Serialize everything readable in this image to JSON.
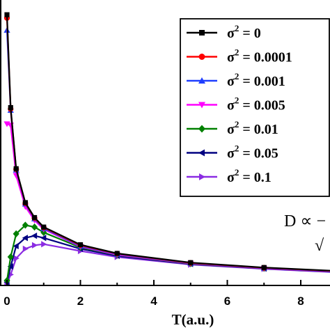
{
  "chart_data": {
    "type": "line",
    "xlabel": "T(a.u.)",
    "ylabel": "",
    "xlim": [
      -0.2,
      9.05
    ],
    "ylim": [
      0,
      1.05
    ],
    "x_ticks": [
      "0",
      "2",
      "4",
      "6",
      "8"
    ],
    "grid": false,
    "legend_position": "top-right",
    "annotation": "D ∝ −",
    "annotation_second_line": "√",
    "x": [
      0.0001,
      0.1,
      0.25,
      0.5,
      0.75,
      1,
      2,
      3,
      5,
      7,
      9.05
    ],
    "series": [
      {
        "name": "σ² = 0",
        "sup": "2",
        "rest": " = 0",
        "color": "#000000",
        "marker": "square",
        "values": [
          0.997,
          0.655,
          0.43,
          0.305,
          0.25,
          0.215,
          0.15,
          0.118,
          0.084,
          0.066,
          0.053
        ]
      },
      {
        "name": "σ² = 0.0001",
        "sup": "2",
        "rest": " = 0.0001",
        "color": "#ff0000",
        "marker": "circle",
        "values": [
          0.985,
          0.65,
          0.428,
          0.303,
          0.248,
          0.213,
          0.148,
          0.117,
          0.083,
          0.065,
          0.052
        ]
      },
      {
        "name": "σ² = 0.001",
        "sup": "2",
        "rest": " = 0.001",
        "color": "#1f3fff",
        "marker": "triangle-up",
        "values": [
          0.94,
          0.645,
          0.425,
          0.3,
          0.245,
          0.21,
          0.145,
          0.115,
          0.082,
          0.064,
          0.051
        ]
      },
      {
        "name": "σ² = 0.005",
        "sup": "2",
        "rest": " = 0.005",
        "color": "#ff00ff",
        "marker": "triangle-down",
        "values": [
          0.595,
          0.59,
          0.405,
          0.29,
          0.24,
          0.207,
          0.143,
          0.113,
          0.081,
          0.063,
          0.05
        ]
      },
      {
        "name": "σ² = 0.01",
        "sup": "2",
        "rest": " = 0.01",
        "color": "#008000",
        "marker": "diamond",
        "values": [
          0.018,
          0.105,
          0.19,
          0.222,
          0.215,
          0.195,
          0.14,
          0.112,
          0.08,
          0.063,
          0.05
        ]
      },
      {
        "name": "σ² = 0.05",
        "sup": "2",
        "rest": " = 0.05",
        "color": "#000080",
        "marker": "triangle-left",
        "values": [
          0.012,
          0.07,
          0.145,
          0.175,
          0.183,
          0.175,
          0.135,
          0.109,
          0.079,
          0.062,
          0.049
        ]
      },
      {
        "name": "σ² = 0.1",
        "sup": "2",
        "rest": " = 0.1",
        "color": "#8a2be2",
        "marker": "triangle-right",
        "values": [
          0.005,
          0.04,
          0.1,
          0.135,
          0.148,
          0.152,
          0.127,
          0.105,
          0.077,
          0.061,
          0.048
        ]
      }
    ]
  },
  "legend_symbol": "σ"
}
